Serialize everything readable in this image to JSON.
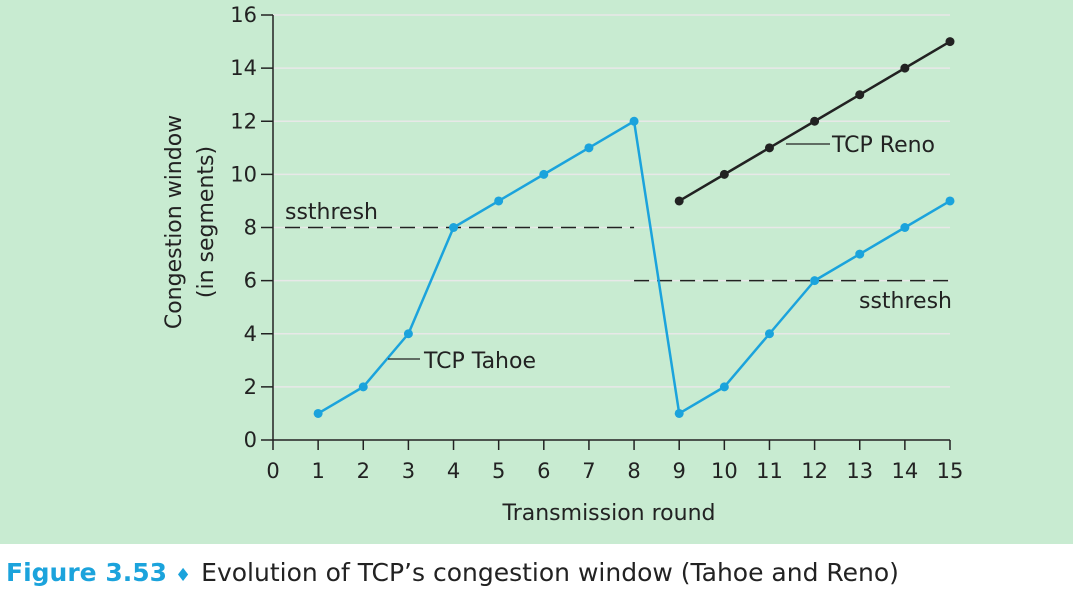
{
  "caption": {
    "label": "Figure 3.53",
    "separator": "♦",
    "text": "Evolution of TCP’s congestion window (Tahoe and Reno)"
  },
  "chart_data": {
    "type": "line",
    "xlabel": "Transmission round",
    "ylabel_line1": "Congestion window",
    "ylabel_line2": "(in segments)",
    "xlim": [
      0,
      15
    ],
    "ylim": [
      0,
      16
    ],
    "x_ticks": [
      0,
      1,
      2,
      3,
      4,
      5,
      6,
      7,
      8,
      9,
      10,
      11,
      12,
      13,
      14,
      15
    ],
    "y_ticks": [
      0,
      2,
      4,
      6,
      8,
      10,
      12,
      14,
      16
    ],
    "grid": "horizontal",
    "series": [
      {
        "name": "TCP Tahoe",
        "color": "#1ba3dc",
        "x": [
          1,
          2,
          3,
          4,
          5,
          6,
          7,
          8,
          9,
          10,
          11,
          12,
          13,
          14,
          15
        ],
        "y": [
          1,
          2,
          4,
          8,
          9,
          10,
          11,
          12,
          1,
          2,
          4,
          6,
          7,
          8,
          9
        ]
      },
      {
        "name": "TCP Reno",
        "color": "#222222",
        "x": [
          9,
          10,
          11,
          12,
          13,
          14,
          15
        ],
        "y": [
          9,
          10,
          11,
          12,
          13,
          14,
          15
        ]
      }
    ],
    "thresholds": [
      {
        "label": "ssthresh",
        "value": 8,
        "x_range": [
          0,
          8
        ]
      },
      {
        "label": "ssthresh",
        "value": 6,
        "x_range": [
          8,
          15
        ]
      }
    ],
    "colors": {
      "background": "#c8ebd1",
      "gridline": "#e8e8e8"
    }
  }
}
